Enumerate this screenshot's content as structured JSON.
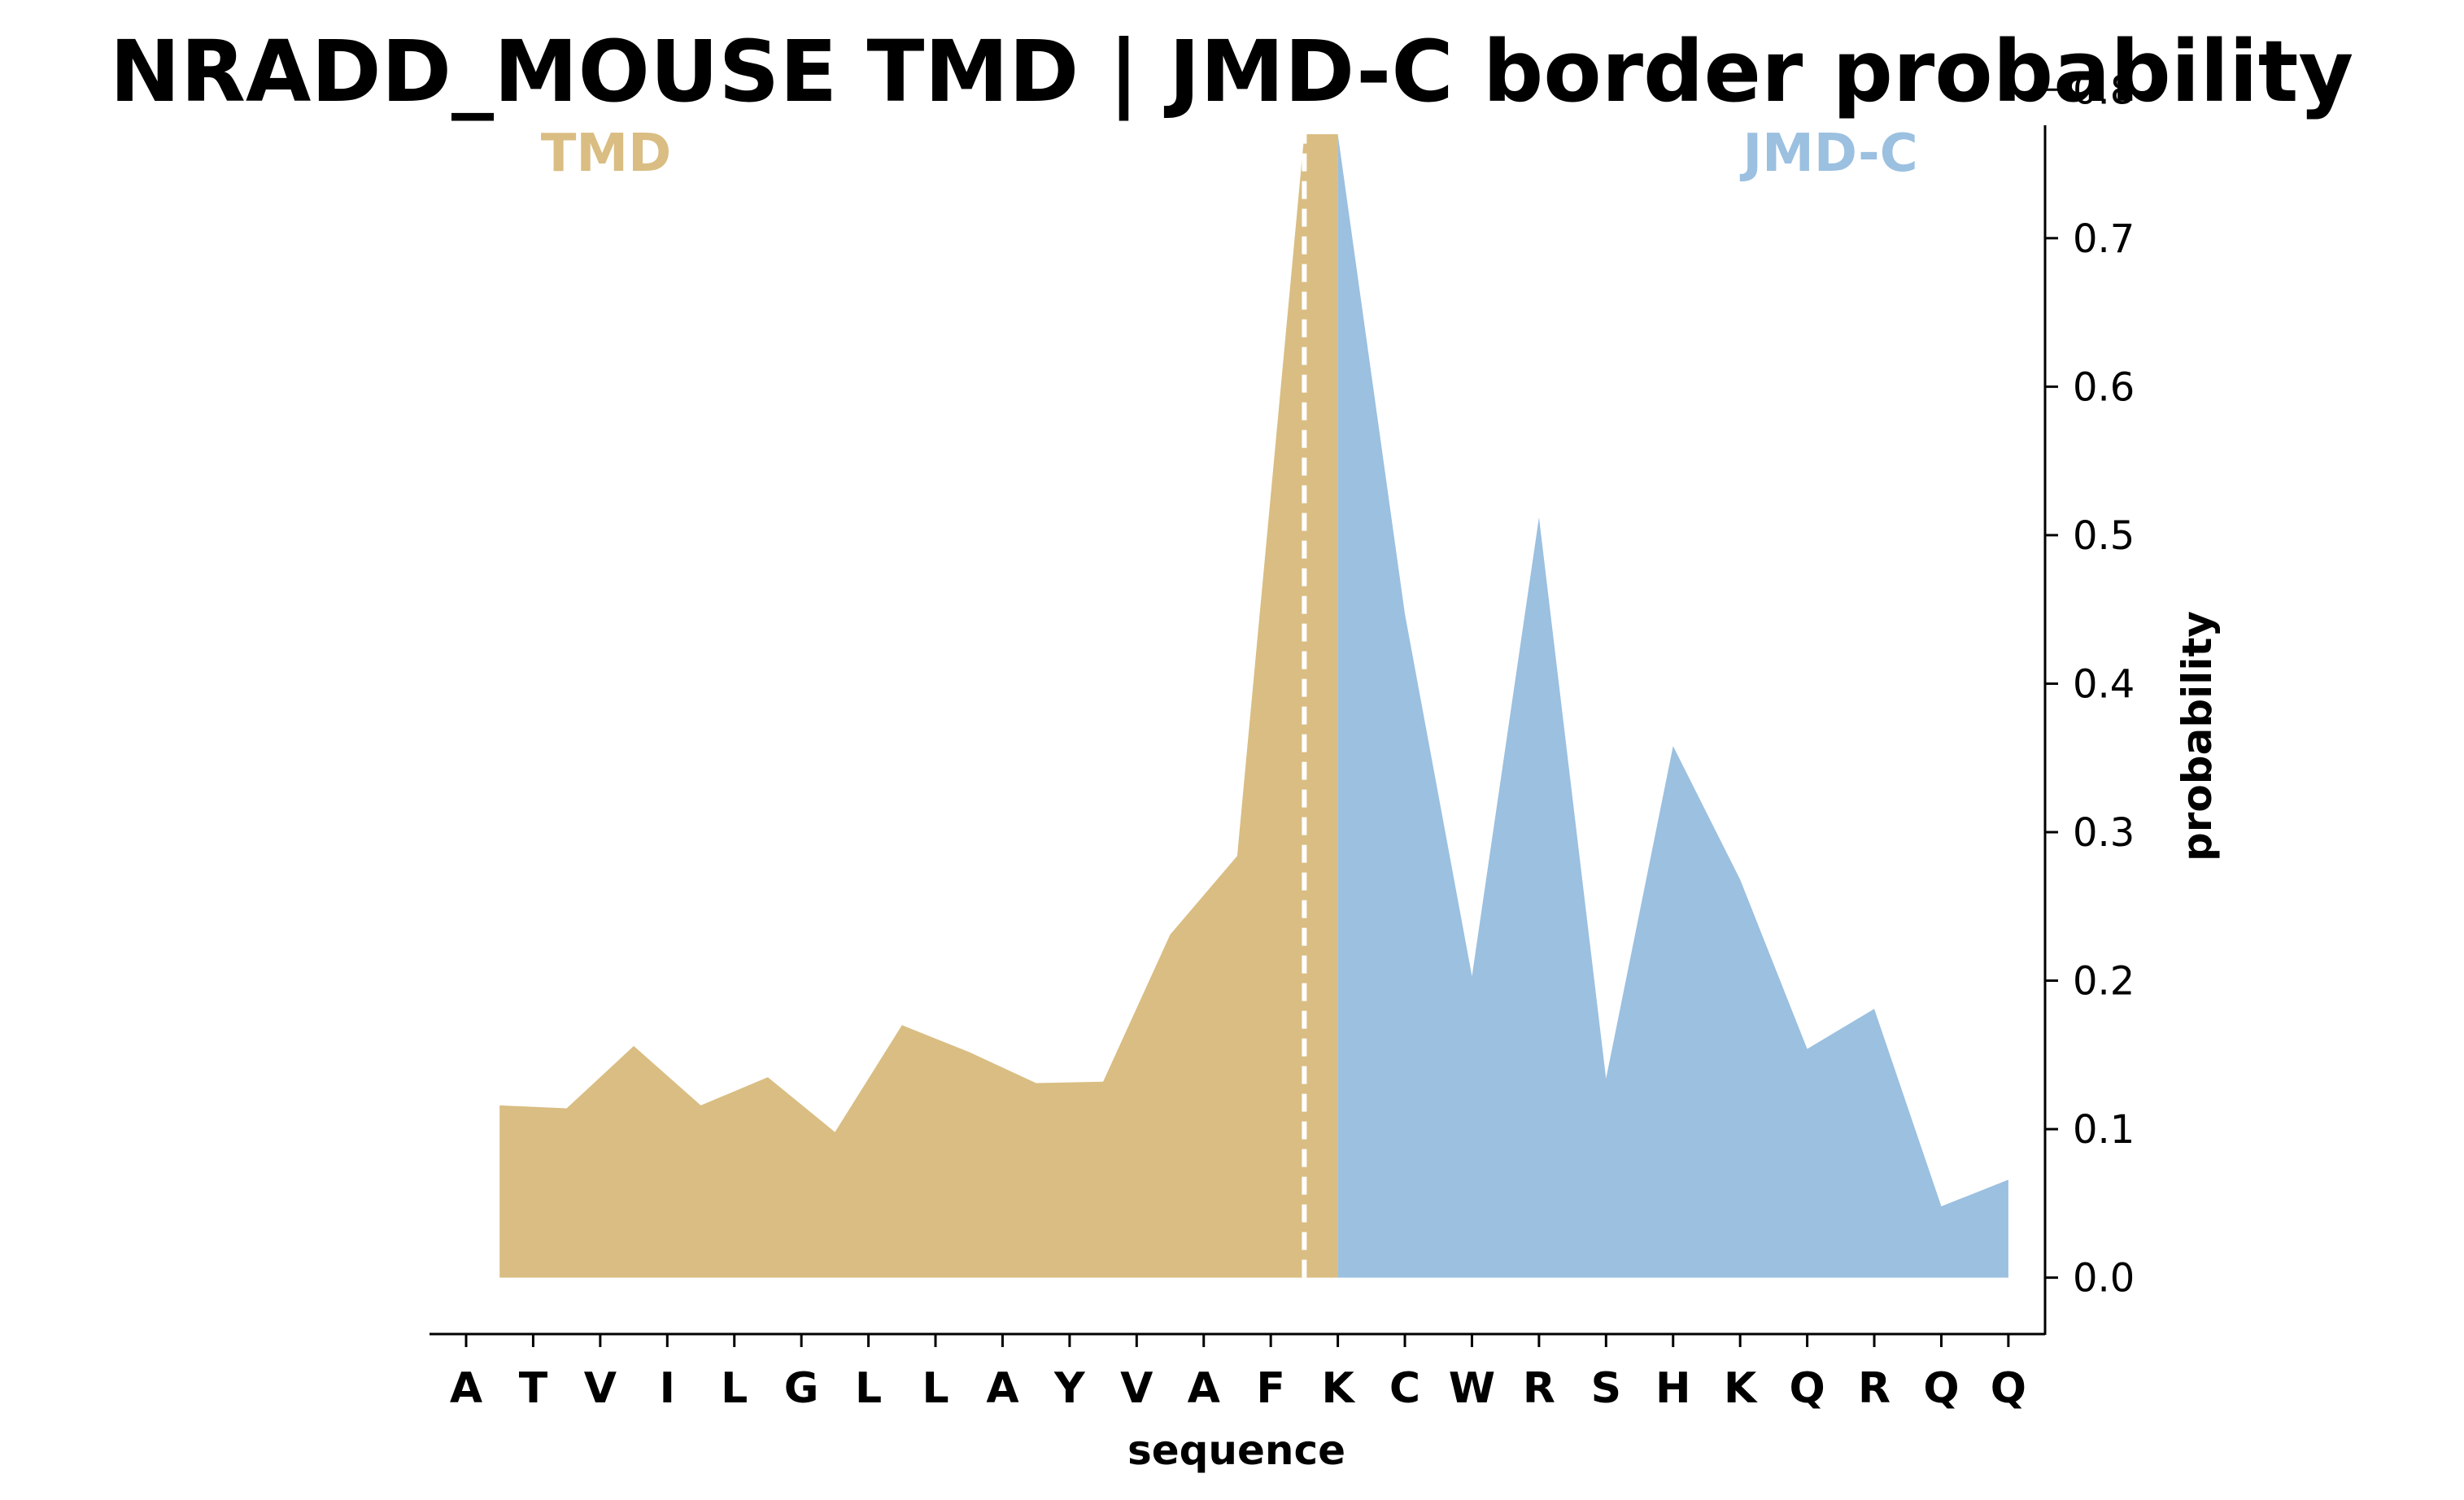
{
  "chart_data": {
    "type": "area",
    "title": "NRADD_MOUSE TMD | JMD-C border probability",
    "xlabel": "sequence",
    "ylabel": "probability",
    "ylim": [
      -0.038,
      0.81
    ],
    "yticks": [
      "0.0",
      "0.1",
      "0.2",
      "0.3",
      "0.4",
      "0.5",
      "0.6",
      "0.7",
      "0.8"
    ],
    "y_axis_side": "right",
    "grid": false,
    "categories": [
      "A",
      "T",
      "V",
      "I",
      "L",
      "G",
      "L",
      "L",
      "A",
      "Y",
      "V",
      "A",
      "F",
      "K",
      "C",
      "W",
      "R",
      "S",
      "H",
      "K",
      "Q",
      "R",
      "Q",
      "Q"
    ],
    "region_labels": [
      {
        "name": "TMD",
        "color": "#d9bd82"
      },
      {
        "name": "JMD-C",
        "color": "#9bc0e0"
      }
    ],
    "border_after_index": 12,
    "series": [
      {
        "name": "TMD",
        "color": "#d9bd82",
        "x": [
          0.5,
          1.5,
          2.5,
          3.5,
          4.5,
          5.5,
          6.5,
          7.5,
          8.5,
          9.5,
          10.5,
          11.5,
          12.5,
          13
        ],
        "values": [
          0.116,
          0.114,
          0.156,
          0.116,
          0.135,
          0.098,
          0.17,
          0.152,
          0.131,
          0.132,
          0.231,
          0.284,
          0.77,
          0.77
        ]
      },
      {
        "name": "JMD-C",
        "color": "#9bc0e0",
        "x": [
          13,
          14,
          15,
          16,
          17,
          18,
          19,
          20,
          21,
          22,
          23
        ],
        "values": [
          0.77,
          0.447,
          0.203,
          0.512,
          0.134,
          0.358,
          0.268,
          0.154,
          0.181,
          0.048,
          0.066
        ]
      }
    ]
  }
}
